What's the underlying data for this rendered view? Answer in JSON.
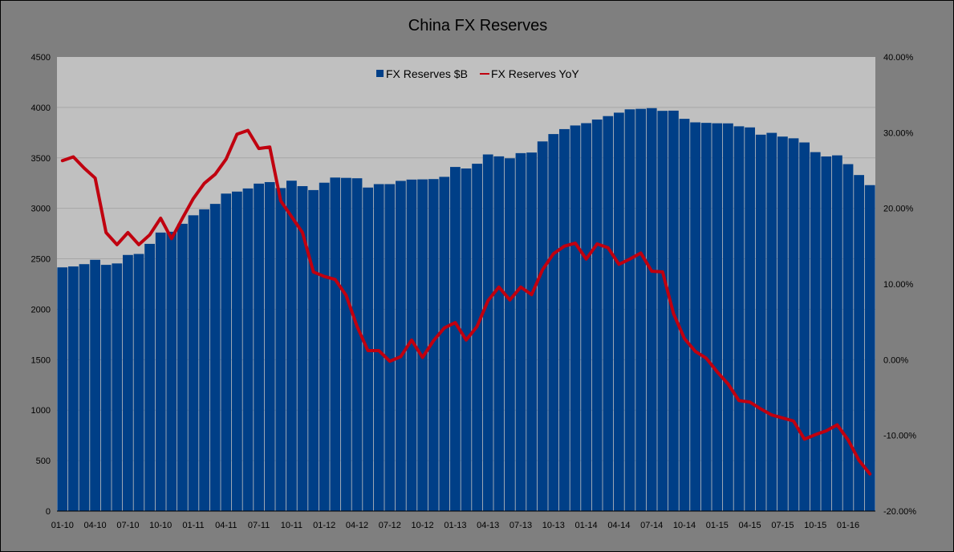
{
  "chart_data": {
    "type": "bar",
    "title": "China FX Reserves",
    "colors": {
      "bars": "#003f87",
      "line": "#c0000f",
      "plot_bg": "#c0c0c0",
      "frame_bg": "#7f7f7f"
    },
    "legend": {
      "placement": "top-center",
      "bar_label": "FX Reserves $B",
      "line_label": "FX Reserves YoY"
    },
    "x_tick_labels": [
      "01-10",
      "04-10",
      "07-10",
      "10-10",
      "01-11",
      "04-11",
      "07-11",
      "10-11",
      "01-12",
      "04-12",
      "07-12",
      "10-12",
      "01-13",
      "04-13",
      "07-13",
      "10-13",
      "01-14",
      "04-14",
      "07-14",
      "10-14",
      "01-15",
      "04-15",
      "07-15",
      "10-15",
      "01-16"
    ],
    "y_left": {
      "ylim": [
        0,
        4500
      ],
      "ticks": [
        "0",
        "500",
        "1000",
        "1500",
        "2000",
        "2500",
        "3000",
        "3500",
        "4000",
        "4500"
      ]
    },
    "y_right": {
      "ylim": [
        -20,
        40
      ],
      "ticks": [
        "-20.00%",
        "-10.00%",
        "0.00%",
        "10.00%",
        "20.00%",
        "30.00%",
        "40.00%"
      ]
    },
    "grid": true,
    "series": [
      {
        "name": "FX Reserves $B",
        "kind": "bar",
        "axis": "left",
        "values": [
          2415,
          2424,
          2447,
          2490,
          2440,
          2454,
          2538,
          2548,
          2648,
          2760,
          2768,
          2847,
          2931,
          2990,
          3044,
          3146,
          3166,
          3197,
          3245,
          3260,
          3201,
          3274,
          3220,
          3181,
          3254,
          3305,
          3302,
          3298,
          3206,
          3240,
          3240,
          3272,
          3285,
          3287,
          3290,
          3312,
          3410,
          3395,
          3442,
          3534,
          3515,
          3496,
          3547,
          3553,
          3663,
          3736,
          3785,
          3821,
          3844,
          3880,
          3914,
          3948,
          3981,
          3986,
          3993,
          3966,
          3968,
          3887,
          3852,
          3847,
          3843,
          3842,
          3813,
          3802,
          3730,
          3748,
          3711,
          3694,
          3653,
          3557,
          3514,
          3525,
          3438,
          3330,
          3230
        ]
      },
      {
        "name": "FX Reserves YoY",
        "kind": "line",
        "axis": "right",
        "values": [
          26.3,
          26.8,
          25.3,
          24.0,
          16.8,
          15.2,
          16.8,
          15.2,
          16.5,
          18.7,
          16.0,
          18.7,
          21.3,
          23.3,
          24.5,
          26.5,
          29.8,
          30.3,
          27.9,
          28.1,
          21.0,
          18.9,
          16.8,
          11.6,
          11.0,
          10.6,
          8.5,
          4.4,
          1.2,
          1.2,
          -0.2,
          0.4,
          2.6,
          0.3,
          2.5,
          4.2,
          4.9,
          2.6,
          4.4,
          7.8,
          9.6,
          7.9,
          9.6,
          8.6,
          11.9,
          14.0,
          15.0,
          15.4,
          13.3,
          15.3,
          14.8,
          12.6,
          13.3,
          14.1,
          11.7,
          11.6,
          6.1,
          2.8,
          1.1,
          0.2,
          -1.6,
          -3.2,
          -5.4,
          -5.6,
          -6.5,
          -7.3,
          -7.7,
          -8.1,
          -10.5,
          -9.9,
          -9.4,
          -8.6,
          -10.6,
          -13.3,
          -15.1
        ]
      }
    ]
  }
}
